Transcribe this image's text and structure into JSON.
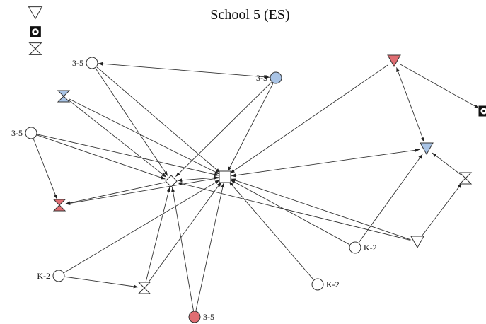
{
  "title": "School 5 (ES)",
  "colors": {
    "edge": "#333333",
    "node_stroke": "#333333",
    "blue": "#a9c4e6",
    "red": "#e06d72",
    "white": "#ffffff",
    "black": "#111111"
  },
  "legend": [
    {
      "shape": "triangle-down",
      "fill": "white"
    },
    {
      "shape": "target-square",
      "fill": "black"
    },
    {
      "shape": "hourglass",
      "fill": "white"
    }
  ],
  "nodes": [
    {
      "id": "n1",
      "shape": "circle",
      "fill": "white",
      "label": "3-5",
      "label_side": "left"
    },
    {
      "id": "n2",
      "shape": "circle",
      "fill": "blue",
      "label": "3-5",
      "label_side": "left"
    },
    {
      "id": "n3",
      "shape": "hourglass",
      "fill": "blue",
      "label": "",
      "label_side": "none"
    },
    {
      "id": "n4",
      "shape": "circle",
      "fill": "white",
      "label": "3-5",
      "label_side": "left"
    },
    {
      "id": "n5",
      "shape": "hourglass",
      "fill": "red",
      "label": "",
      "label_side": "none"
    },
    {
      "id": "n6",
      "shape": "diamond",
      "fill": "white",
      "label": "",
      "label_side": "none"
    },
    {
      "id": "n7",
      "shape": "square",
      "fill": "white",
      "label": "",
      "label_side": "none"
    },
    {
      "id": "n8",
      "shape": "triangle-down",
      "fill": "red",
      "label": "",
      "label_side": "none"
    },
    {
      "id": "n9",
      "shape": "target-square",
      "fill": "black",
      "label": "",
      "label_side": "none"
    },
    {
      "id": "n10",
      "shape": "triangle-down",
      "fill": "blue",
      "label": "",
      "label_side": "none"
    },
    {
      "id": "n11",
      "shape": "hourglass",
      "fill": "white",
      "label": "",
      "label_side": "none"
    },
    {
      "id": "n12",
      "shape": "triangle-down",
      "fill": "white",
      "label": "",
      "label_side": "none"
    },
    {
      "id": "n13",
      "shape": "circle",
      "fill": "white",
      "label": "K-2",
      "label_side": "right"
    },
    {
      "id": "n14",
      "shape": "circle",
      "fill": "white",
      "label": "K-2",
      "label_side": "left"
    },
    {
      "id": "n15",
      "shape": "hourglass",
      "fill": "white",
      "label": "",
      "label_side": "none"
    },
    {
      "id": "n16",
      "shape": "circle",
      "fill": "white",
      "label": "K-2",
      "label_side": "right"
    },
    {
      "id": "n17",
      "shape": "circle",
      "fill": "red",
      "label": "3-5",
      "label_side": "right"
    }
  ],
  "edges": [
    {
      "from": "n1",
      "to": "n2",
      "both": true
    },
    {
      "from": "n1",
      "to": "n6",
      "both": false
    },
    {
      "from": "n1",
      "to": "n7",
      "both": false
    },
    {
      "from": "n2",
      "to": "n6",
      "both": false
    },
    {
      "from": "n2",
      "to": "n7",
      "both": false
    },
    {
      "from": "n3",
      "to": "n6",
      "both": false
    },
    {
      "from": "n3",
      "to": "n7",
      "both": false
    },
    {
      "from": "n4",
      "to": "n5",
      "both": false
    },
    {
      "from": "n4",
      "to": "n6",
      "both": false
    },
    {
      "from": "n4",
      "to": "n7",
      "both": false
    },
    {
      "from": "n6",
      "to": "n5",
      "both": false
    },
    {
      "from": "n7",
      "to": "n5",
      "both": false
    },
    {
      "from": "n7",
      "to": "n6",
      "both": true
    },
    {
      "from": "n8",
      "to": "n7",
      "both": false
    },
    {
      "from": "n8",
      "to": "n9",
      "both": false
    },
    {
      "from": "n8",
      "to": "n10",
      "both": true
    },
    {
      "from": "n10",
      "to": "n7",
      "both": true
    },
    {
      "from": "n11",
      "to": "n10",
      "both": false
    },
    {
      "from": "n12",
      "to": "n11",
      "both": false
    },
    {
      "from": "n12",
      "to": "n7",
      "both": false
    },
    {
      "from": "n12",
      "to": "n6",
      "both": false
    },
    {
      "from": "n13",
      "to": "n10",
      "both": false
    },
    {
      "from": "n13",
      "to": "n7",
      "both": false
    },
    {
      "from": "n14",
      "to": "n15",
      "both": false
    },
    {
      "from": "n14",
      "to": "n7",
      "both": false
    },
    {
      "from": "n15",
      "to": "n6",
      "both": false
    },
    {
      "from": "n15",
      "to": "n7",
      "both": false
    },
    {
      "from": "n16",
      "to": "n7",
      "both": false
    },
    {
      "from": "n17",
      "to": "n6",
      "both": false
    },
    {
      "from": "n17",
      "to": "n7",
      "both": false
    }
  ]
}
